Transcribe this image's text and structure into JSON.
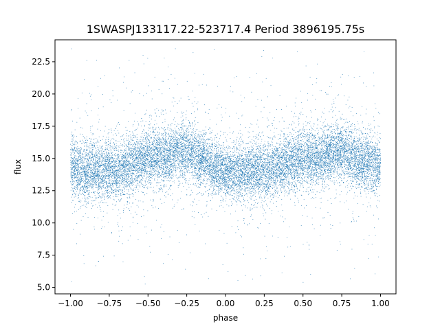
{
  "chart_data": {
    "type": "scatter",
    "title": "1SWASPJ133117.22-523717.4 Period 3896195.75s",
    "xlabel": "phase",
    "ylabel": "flux",
    "xlim": [
      -1.1,
      1.1
    ],
    "ylim": [
      4.5,
      24.2
    ],
    "xticks": [
      -1.0,
      -0.75,
      -0.5,
      -0.25,
      0.0,
      0.25,
      0.5,
      0.75,
      1.0
    ],
    "xtick_labels": [
      "−1.00",
      "−0.75",
      "−0.50",
      "−0.25",
      "0.00",
      "0.25",
      "0.50",
      "0.75",
      "1.00"
    ],
    "yticks": [
      5.0,
      7.5,
      10.0,
      12.5,
      15.0,
      17.5,
      20.0,
      22.5
    ],
    "ytick_labels": [
      "5.0",
      "7.5",
      "10.0",
      "12.5",
      "15.0",
      "17.5",
      "20.0",
      "22.5"
    ],
    "grid": false,
    "marker_color": "#1f77b4",
    "phase_range": [
      -1.0,
      1.0
    ],
    "flux_center_range": [
      13.8,
      15.8
    ],
    "flux_extent": [
      5.2,
      23.6
    ],
    "series": [
      {
        "x": [
          -1.0,
          -0.98,
          -0.95,
          -0.9,
          -0.87,
          -0.82,
          -0.78,
          -0.75,
          -0.72,
          -0.7,
          -0.65,
          -0.6,
          -0.55,
          -0.5,
          -0.45,
          -0.4,
          -0.35,
          -0.3,
          -0.27,
          -0.25,
          -0.22,
          -0.2,
          -0.15,
          -0.1,
          -0.05,
          0.0,
          0.05,
          0.1,
          0.15,
          0.2,
          0.25,
          0.28,
          0.3,
          0.35,
          0.4,
          0.45,
          0.5,
          0.55,
          0.6,
          0.65,
          0.7,
          0.72,
          0.75,
          0.78,
          0.8,
          0.85,
          0.9,
          0.95,
          1.0
        ],
        "y": [
          14.5,
          14.2,
          14.0,
          13.8,
          14.2,
          14.0,
          13.9,
          14.3,
          14.1,
          14.0,
          14.3,
          14.6,
          14.8,
          15.0,
          15.2,
          15.1,
          15.3,
          15.5,
          15.6,
          15.5,
          15.4,
          15.2,
          14.9,
          14.5,
          14.2,
          14.0,
          14.0,
          13.9,
          14.1,
          14.2,
          14.0,
          14.1,
          14.2,
          14.4,
          14.7,
          14.9,
          15.0,
          15.1,
          15.0,
          15.2,
          15.5,
          15.6,
          15.5,
          15.3,
          15.1,
          14.9,
          14.8,
          14.6,
          14.6
        ]
      }
    ]
  }
}
